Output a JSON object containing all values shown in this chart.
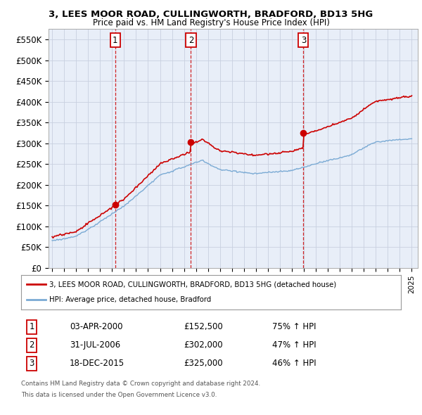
{
  "title": "3, LEES MOOR ROAD, CULLINGWORTH, BRADFORD, BD13 5HG",
  "subtitle": "Price paid vs. HM Land Registry's House Price Index (HPI)",
  "ylim": [
    0,
    575000
  ],
  "yticks": [
    0,
    50000,
    100000,
    150000,
    200000,
    250000,
    300000,
    350000,
    400000,
    450000,
    500000,
    550000
  ],
  "ytick_labels": [
    "£0",
    "£50K",
    "£100K",
    "£150K",
    "£200K",
    "£250K",
    "£300K",
    "£350K",
    "£400K",
    "£450K",
    "£500K",
    "£550K"
  ],
  "xlim_start": 1994.7,
  "xlim_end": 2025.5,
  "sale_dates": [
    2000.25,
    2006.58,
    2015.96
  ],
  "sale_prices": [
    152500,
    302000,
    325000
  ],
  "sale_labels": [
    "1",
    "2",
    "3"
  ],
  "sale_date_strs": [
    "03-APR-2000",
    "31-JUL-2006",
    "18-DEC-2015"
  ],
  "sale_price_strs": [
    "£152,500",
    "£302,000",
    "£325,000"
  ],
  "sale_pct_strs": [
    "75% ↑ HPI",
    "47% ↑ HPI",
    "46% ↑ HPI"
  ],
  "legend_red": "3, LEES MOOR ROAD, CULLINGWORTH, BRADFORD, BD13 5HG (detached house)",
  "legend_blue": "HPI: Average price, detached house, Bradford",
  "footer1": "Contains HM Land Registry data © Crown copyright and database right 2024.",
  "footer2": "This data is licensed under the Open Government Licence v3.0.",
  "red_color": "#cc0000",
  "blue_color": "#7aaad4",
  "bg_color": "#e8eef8",
  "grid_color": "#c8d0e0"
}
